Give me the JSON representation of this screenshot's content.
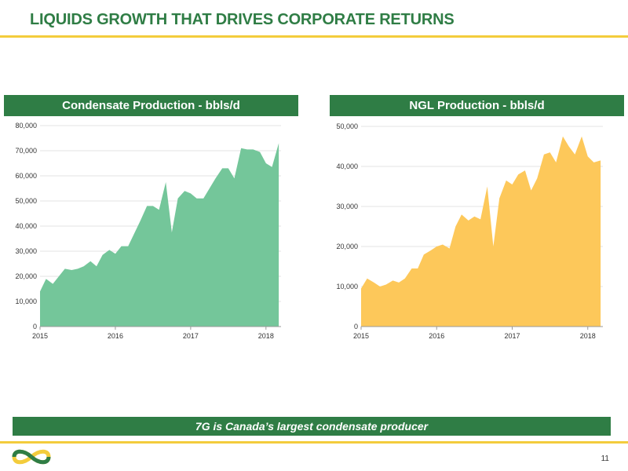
{
  "slide": {
    "title": "LIQUIDS GROWTH THAT DRIVES CORPORATE RETURNS",
    "banner": "7G is Canada’s largest condensate producer",
    "page_number": "11"
  },
  "colors": {
    "brand_green": "#2f7d45",
    "accent_gold": "#f3cc3c",
    "condensate_fill": "#74c69a",
    "ngl_fill": "#fdc85a"
  },
  "chart_data": [
    {
      "type": "area",
      "title": "Condensate Production - bbls/d",
      "x_ticks": [
        "2015",
        "2016",
        "2017",
        "2018"
      ],
      "x_range": [
        2015,
        2018.2
      ],
      "ylim": [
        0,
        80000
      ],
      "y_ticks": [
        "0",
        "10,000",
        "20,000",
        "30,000",
        "40,000",
        "50,000",
        "60,000",
        "70,000",
        "80,000"
      ],
      "grid": true,
      "color": "#74c69a",
      "x": [
        2015.0,
        2015.08,
        2015.17,
        2015.25,
        2015.33,
        2015.42,
        2015.5,
        2015.58,
        2015.67,
        2015.75,
        2015.83,
        2015.92,
        2016.0,
        2016.08,
        2016.17,
        2016.25,
        2016.33,
        2016.42,
        2016.5,
        2016.58,
        2016.67,
        2016.75,
        2016.83,
        2016.92,
        2017.0,
        2017.08,
        2017.17,
        2017.25,
        2017.33,
        2017.42,
        2017.5,
        2017.58,
        2017.67,
        2017.75,
        2017.83,
        2017.92,
        2018.0,
        2018.08,
        2018.17
      ],
      "values": [
        14000,
        19000,
        17000,
        20000,
        23000,
        22500,
        23000,
        24000,
        26000,
        24000,
        28500,
        30500,
        29000,
        32000,
        32000,
        37000,
        42000,
        48000,
        48000,
        46500,
        57500,
        37500,
        51000,
        54000,
        53000,
        51000,
        51000,
        55000,
        59000,
        63000,
        63000,
        59000,
        71000,
        70500,
        70500,
        69500,
        65000,
        63500,
        73000
      ]
    },
    {
      "type": "area",
      "title": "NGL Production - bbls/d",
      "x_ticks": [
        "2015",
        "2016",
        "2017",
        "2018"
      ],
      "x_range": [
        2015,
        2018.2
      ],
      "ylim": [
        0,
        50000
      ],
      "y_ticks": [
        "0",
        "10,000",
        "20,000",
        "30,000",
        "40,000",
        "50,000"
      ],
      "grid": true,
      "color": "#fdc85a",
      "x": [
        2015.0,
        2015.08,
        2015.17,
        2015.25,
        2015.33,
        2015.42,
        2015.5,
        2015.58,
        2015.67,
        2015.75,
        2015.83,
        2015.92,
        2016.0,
        2016.08,
        2016.17,
        2016.25,
        2016.33,
        2016.42,
        2016.5,
        2016.58,
        2016.67,
        2016.75,
        2016.83,
        2016.92,
        2017.0,
        2017.08,
        2017.17,
        2017.25,
        2017.33,
        2017.42,
        2017.5,
        2017.58,
        2017.67,
        2017.75,
        2017.83,
        2017.92,
        2018.0,
        2018.08,
        2018.17
      ],
      "values": [
        9500,
        12000,
        11000,
        10000,
        10500,
        11500,
        11000,
        12000,
        14500,
        14500,
        18000,
        19000,
        20000,
        20500,
        19500,
        25000,
        28000,
        26500,
        27500,
        26800,
        35000,
        20000,
        32000,
        36500,
        35500,
        38000,
        39000,
        34000,
        37000,
        43000,
        43500,
        41000,
        47500,
        45000,
        43000,
        47500,
        42500,
        41000,
        41500
      ]
    }
  ]
}
